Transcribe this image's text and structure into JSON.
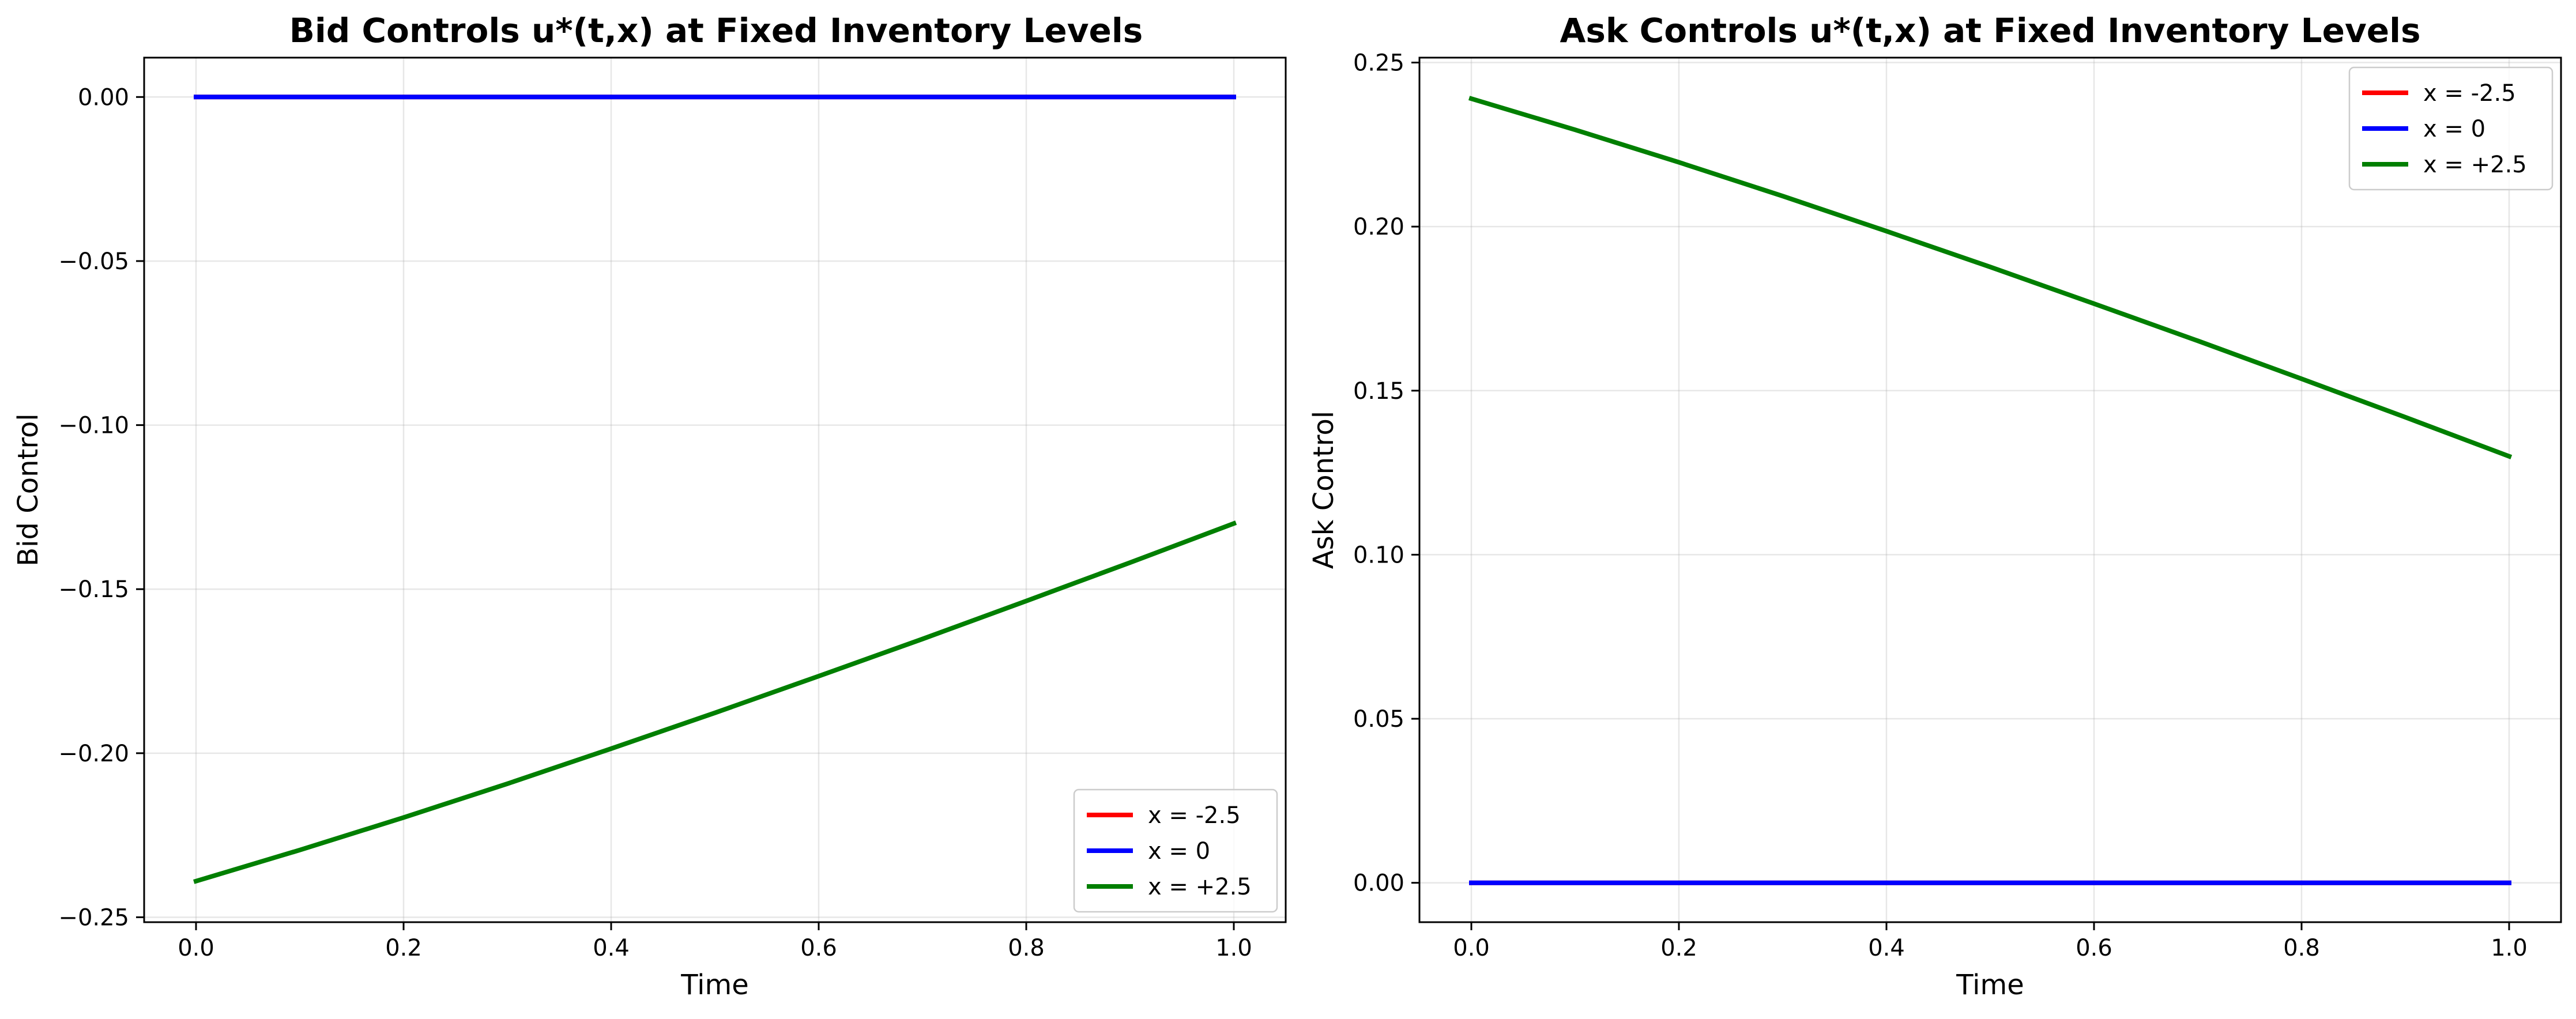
{
  "chart_data": [
    {
      "type": "line",
      "title": "Bid Controls u*(t,x) at Fixed Inventory Levels",
      "xlabel": "Time",
      "ylabel": "Bid Control",
      "xlim": [
        -0.05,
        1.05
      ],
      "ylim": [
        -0.2515,
        0.012
      ],
      "xticks": [
        0.0,
        0.2,
        0.4,
        0.6,
        0.8,
        1.0
      ],
      "xtick_labels": [
        "0.0",
        "0.2",
        "0.4",
        "0.6",
        "0.8",
        "1.0"
      ],
      "yticks": [
        0.0,
        -0.05,
        -0.1,
        -0.15,
        -0.2,
        -0.25
      ],
      "ytick_labels": [
        "0.00",
        "−0.05",
        "−0.10",
        "−0.15",
        "−0.20",
        "−0.25"
      ],
      "grid": true,
      "legend_position": "lower-right",
      "x": [
        0.0,
        0.1,
        0.2,
        0.3,
        0.4,
        0.5,
        0.6,
        0.7,
        0.8,
        0.9,
        1.0
      ],
      "series": [
        {
          "name": "x = -2.5",
          "color": "#ff0000",
          "values": [
            0,
            0,
            0,
            0,
            0,
            0,
            0,
            0,
            0,
            0,
            0
          ]
        },
        {
          "name": "x = 0",
          "color": "#0000ff",
          "values": [
            0,
            0,
            0,
            0,
            0,
            0,
            0,
            0,
            0,
            0,
            0
          ]
        },
        {
          "name": "x = +2.5",
          "color": "#007f00",
          "values": [
            -0.239,
            -0.2295,
            -0.2196,
            -0.2093,
            -0.1986,
            -0.1877,
            -0.1765,
            -0.1652,
            -0.1536,
            -0.1419,
            -0.13
          ]
        }
      ]
    },
    {
      "type": "line",
      "title": "Ask Controls u*(t,x) at Fixed Inventory Levels",
      "xlabel": "Time",
      "ylabel": "Ask Control",
      "xlim": [
        -0.05,
        1.05
      ],
      "ylim": [
        -0.012,
        0.2515
      ],
      "xticks": [
        0.0,
        0.2,
        0.4,
        0.6,
        0.8,
        1.0
      ],
      "xtick_labels": [
        "0.0",
        "0.2",
        "0.4",
        "0.6",
        "0.8",
        "1.0"
      ],
      "yticks": [
        0.0,
        0.05,
        0.1,
        0.15,
        0.2,
        0.25
      ],
      "ytick_labels": [
        "0.00",
        "0.05",
        "0.10",
        "0.15",
        "0.20",
        "0.25"
      ],
      "grid": true,
      "legend_position": "upper-right",
      "x": [
        0.0,
        0.1,
        0.2,
        0.3,
        0.4,
        0.5,
        0.6,
        0.7,
        0.8,
        0.9,
        1.0
      ],
      "series": [
        {
          "name": "x = -2.5",
          "color": "#ff0000",
          "values": [
            0,
            0,
            0,
            0,
            0,
            0,
            0,
            0,
            0,
            0,
            0
          ]
        },
        {
          "name": "x = 0",
          "color": "#0000ff",
          "values": [
            0,
            0,
            0,
            0,
            0,
            0,
            0,
            0,
            0,
            0,
            0
          ]
        },
        {
          "name": "x = +2.5",
          "color": "#007f00",
          "values": [
            0.239,
            0.2295,
            0.2196,
            0.2093,
            0.1986,
            0.1877,
            0.1765,
            0.1652,
            0.1536,
            0.1419,
            0.13
          ]
        }
      ]
    }
  ]
}
